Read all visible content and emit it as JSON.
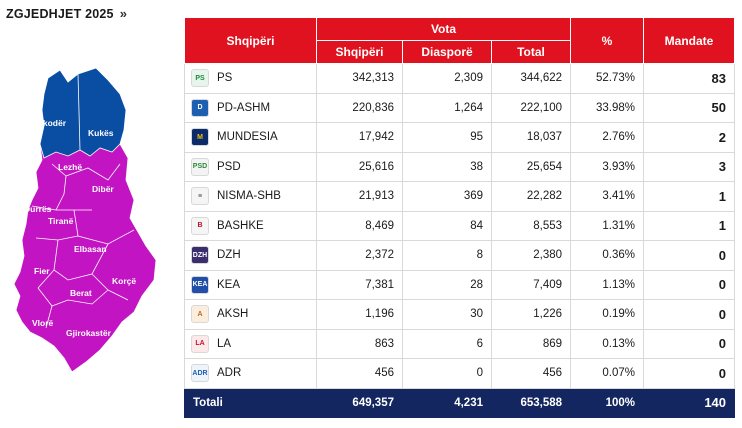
{
  "page": {
    "title": "ZGJEDHJET 2025",
    "title_icon": "double-chevron-right-icon"
  },
  "map": {
    "north_color": "#0a4ea3",
    "rest_color": "#c314c3",
    "regions": [
      "Shkodër",
      "Kukës",
      "Lezhë",
      "Dibër",
      "Durrës",
      "Tiranë",
      "Elbasan",
      "Fier",
      "Korçë",
      "Berat",
      "Vlorë",
      "Gjirokastër"
    ]
  },
  "table": {
    "headers": {
      "country": "Shqipëri",
      "votes": "Vota",
      "sub_albania": "Shqipëri",
      "sub_diaspora": "Diasporë",
      "sub_total": "Total",
      "percent": "%",
      "seats": "Mandate"
    },
    "colors": {
      "header": "#e1121f",
      "total_row": "#14265f"
    },
    "rows": [
      {
        "party": "PS",
        "albania": "342,313",
        "diaspora": "2,309",
        "total": "344,622",
        "percent": "52.73%",
        "seats": "83",
        "logo_color": "#e8f5ec",
        "logo_text": "PS",
        "logo_fg": "#1a8a3a",
        "logo_icon": "ps-rose-logo-icon"
      },
      {
        "party": "PD-ASHM",
        "albania": "220,836",
        "diaspora": "1,264",
        "total": "222,100",
        "percent": "33.98%",
        "seats": "50",
        "logo_color": "#1d5fb0",
        "logo_text": "D",
        "logo_fg": "#ffffff",
        "logo_icon": "pd-logo-icon"
      },
      {
        "party": "MUNDESIA",
        "albania": "17,942",
        "diaspora": "95",
        "total": "18,037",
        "percent": "2.76%",
        "seats": "2",
        "logo_color": "#0d2b6b",
        "logo_text": "M",
        "logo_fg": "#f2c200",
        "logo_icon": "mundesia-logo-icon"
      },
      {
        "party": "PSD",
        "albania": "25,616",
        "diaspora": "38",
        "total": "25,654",
        "percent": "3.93%",
        "seats": "3",
        "logo_color": "#f3f3f3",
        "logo_text": "PSD",
        "logo_fg": "#2a8a3a",
        "logo_icon": "psd-logo-icon"
      },
      {
        "party": "NISMA-SHB",
        "albania": "21,913",
        "diaspora": "369",
        "total": "22,282",
        "percent": "3.41%",
        "seats": "1",
        "logo_color": "#f5f5f5",
        "logo_text": "≡",
        "logo_fg": "#444444",
        "logo_icon": "nisma-logo-icon"
      },
      {
        "party": "BASHKE",
        "albania": "8,469",
        "diaspora": "84",
        "total": "8,553",
        "percent": "1.31%",
        "seats": "1",
        "logo_color": "#f5f5f5",
        "logo_text": "B",
        "logo_fg": "#c0102a",
        "logo_icon": "bashke-logo-icon"
      },
      {
        "party": "DZH",
        "albania": "2,372",
        "diaspora": "8",
        "total": "2,380",
        "percent": "0.36%",
        "seats": "0",
        "logo_color": "#3a2e6e",
        "logo_text": "DZH",
        "logo_fg": "#ffffff",
        "logo_icon": "dzh-logo-icon"
      },
      {
        "party": "KEA",
        "albania": "7,381",
        "diaspora": "28",
        "total": "7,409",
        "percent": "1.13%",
        "seats": "0",
        "logo_color": "#1f4fa8",
        "logo_text": "KEA",
        "logo_fg": "#ffffff",
        "logo_icon": "kea-logo-icon"
      },
      {
        "party": "AKSH",
        "albania": "1,196",
        "diaspora": "30",
        "total": "1,226",
        "percent": "0.19%",
        "seats": "0",
        "logo_color": "#fbeede",
        "logo_text": "A",
        "logo_fg": "#c06a1a",
        "logo_icon": "aksh-logo-icon"
      },
      {
        "party": "LA",
        "albania": "863",
        "diaspora": "6",
        "total": "869",
        "percent": "0.13%",
        "seats": "0",
        "logo_color": "#fde8ea",
        "logo_text": "LA",
        "logo_fg": "#d0102a",
        "logo_icon": "la-logo-icon"
      },
      {
        "party": "ADR",
        "albania": "456",
        "diaspora": "0",
        "total": "456",
        "percent": "0.07%",
        "seats": "0",
        "logo_color": "#eef4fb",
        "logo_text": "ADR",
        "logo_fg": "#1d5fb0",
        "logo_icon": "adr-logo-icon"
      }
    ],
    "total": {
      "label": "Totali",
      "albania": "649,357",
      "diaspora": "4,231",
      "total": "653,588",
      "percent": "100%",
      "seats": "140"
    }
  }
}
